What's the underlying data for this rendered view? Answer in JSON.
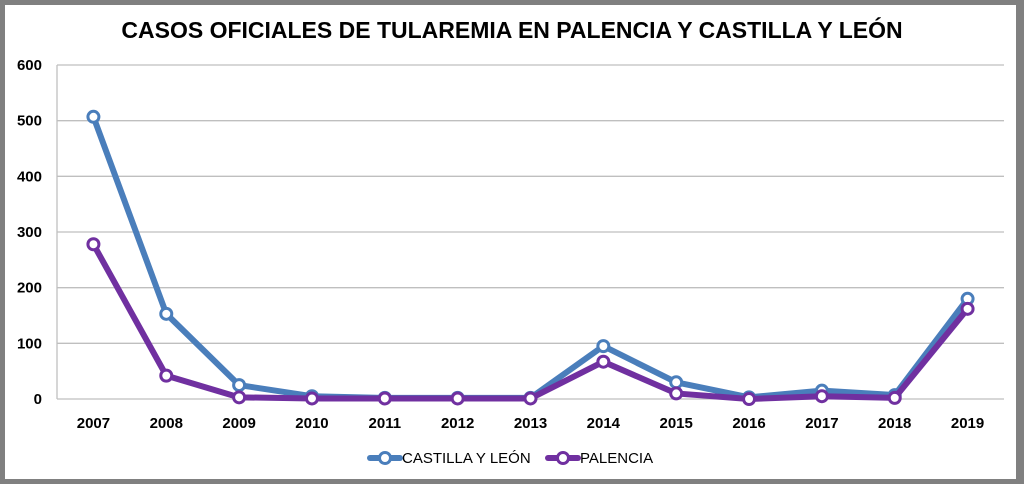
{
  "chart_data": {
    "type": "line",
    "title": "CASOS OFICIALES DE TULAREMIA EN PALENCIA Y CASTILLA Y LEÓN",
    "xlabel": "",
    "ylabel": "",
    "categories": [
      "2007",
      "2008",
      "2009",
      "2010",
      "2011",
      "2012",
      "2013",
      "2014",
      "2015",
      "2016",
      "2017",
      "2018",
      "2019"
    ],
    "ylim": [
      0,
      600
    ],
    "yticks": [
      "0",
      "100",
      "200",
      "300",
      "400",
      "500",
      "600"
    ],
    "grid": true,
    "legend_position": "bottom",
    "series": [
      {
        "name": "CASTILLA Y LEÓN",
        "color": "#4A7EBB",
        "values": [
          507,
          153,
          25,
          5,
          2,
          2,
          2,
          95,
          30,
          3,
          15,
          7,
          180
        ]
      },
      {
        "name": "PALENCIA",
        "color": "#7030A0",
        "values": [
          278,
          42,
          3,
          1,
          1,
          1,
          1,
          67,
          10,
          0,
          5,
          2,
          162
        ]
      }
    ]
  }
}
